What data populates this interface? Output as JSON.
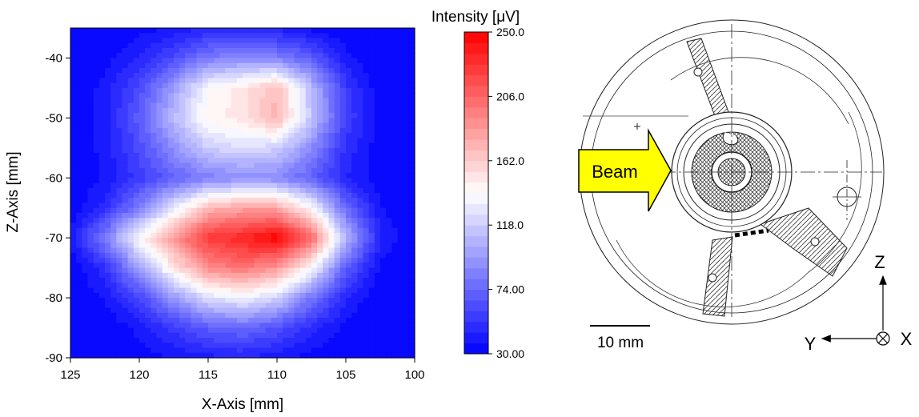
{
  "chart_data": {
    "type": "heatmap",
    "xlabel": "X-Axis [mm]",
    "ylabel": "Z-Axis [mm]",
    "xlim": [
      125,
      100
    ],
    "ylim": [
      -90,
      -35
    ],
    "x_ticks": [
      "125",
      "120",
      "115",
      "110",
      "105",
      "100"
    ],
    "y_ticks": [
      "-40",
      "-50",
      "-60",
      "-70",
      "-80",
      "-90"
    ],
    "x": [
      125,
      122.5,
      120,
      117.5,
      115,
      112.5,
      110,
      107.5,
      105,
      102.5,
      100
    ],
    "y": [
      -35,
      -40,
      -45,
      -50,
      -55,
      -60,
      -65,
      -70,
      -75,
      -80,
      -85,
      -90
    ],
    "z": [
      [
        30,
        30,
        34,
        38,
        45,
        48,
        42,
        35,
        30,
        30,
        30
      ],
      [
        30,
        35,
        45,
        62,
        82,
        90,
        85,
        70,
        40,
        30,
        30
      ],
      [
        30,
        40,
        62,
        98,
        140,
        150,
        170,
        110,
        55,
        32,
        30
      ],
      [
        30,
        42,
        70,
        110,
        145,
        150,
        172,
        115,
        58,
        35,
        30
      ],
      [
        30,
        40,
        62,
        92,
        118,
        125,
        120,
        90,
        50,
        32,
        30
      ],
      [
        30,
        38,
        55,
        72,
        85,
        90,
        88,
        72,
        45,
        32,
        30
      ],
      [
        32,
        48,
        85,
        130,
        170,
        180,
        178,
        140,
        75,
        38,
        30
      ],
      [
        38,
        85,
        140,
        185,
        225,
        235,
        250,
        205,
        110,
        45,
        30
      ],
      [
        30,
        50,
        100,
        150,
        190,
        200,
        185,
        140,
        70,
        35,
        30
      ],
      [
        30,
        38,
        60,
        95,
        125,
        135,
        120,
        80,
        45,
        30,
        30
      ],
      [
        30,
        30,
        40,
        55,
        70,
        75,
        65,
        48,
        35,
        30,
        30
      ],
      [
        30,
        30,
        32,
        38,
        42,
        45,
        40,
        34,
        30,
        30,
        30
      ]
    ],
    "colorbar": {
      "label": "Intensity [μV]",
      "min": 30,
      "max": 250,
      "ticks": [
        "250.0",
        "206.0",
        "162.0",
        "118.0",
        "74.00",
        "30.00"
      ],
      "colors": [
        "#0000ff",
        "#ffffff",
        "#ff0000"
      ]
    }
  },
  "schematic": {
    "beam_label": "Beam",
    "scale_label": "10 mm",
    "axis_z": "Z",
    "axis_y": "Y",
    "axis_x": "X"
  }
}
